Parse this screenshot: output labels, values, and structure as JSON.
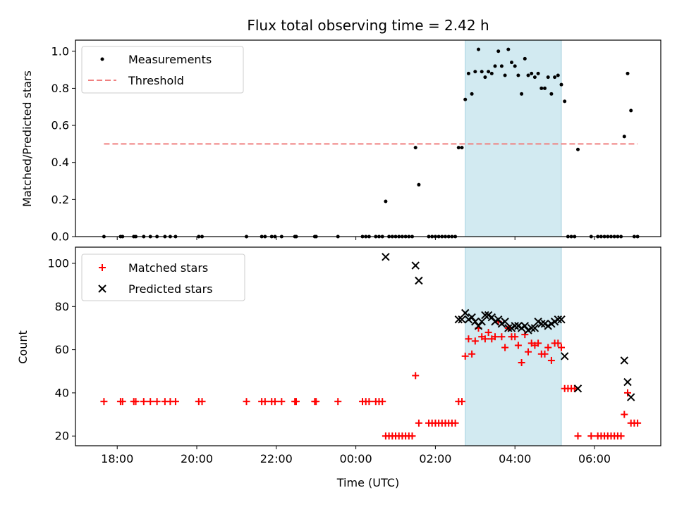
{
  "chart_data": [
    {
      "type": "scatter",
      "title": "Flux total observing time = 2.42 h",
      "ylabel": "Matched/Predicted stars",
      "xlabel": "",
      "ylim": [
        0,
        1.06
      ],
      "yticks": [
        "0.0",
        "0.2",
        "0.4",
        "0.6",
        "0.8",
        "1.0"
      ],
      "highlight_span": [
        "02:45",
        "05:10"
      ],
      "legend": {
        "placement": "top-left",
        "entries": [
          "Measurements",
          "Threshold"
        ]
      },
      "threshold": {
        "name": "Threshold",
        "y": 0.5,
        "x_range": [
          "17:40",
          "07:05"
        ],
        "color": "#f08080"
      },
      "series": [
        {
          "name": "Measurements",
          "color": "#000000",
          "points": [
            [
              "17:40",
              0
            ],
            [
              "18:05",
              0
            ],
            [
              "18:08",
              0
            ],
            [
              "18:25",
              0
            ],
            [
              "18:28",
              0
            ],
            [
              "18:40",
              0
            ],
            [
              "18:50",
              0
            ],
            [
              "19:00",
              0
            ],
            [
              "19:12",
              0
            ],
            [
              "19:20",
              0
            ],
            [
              "19:28",
              0
            ],
            [
              "20:03",
              0
            ],
            [
              "20:08",
              0
            ],
            [
              "21:15",
              0
            ],
            [
              "21:38",
              0
            ],
            [
              "21:43",
              0
            ],
            [
              "21:53",
              0
            ],
            [
              "21:58",
              0
            ],
            [
              "22:08",
              0
            ],
            [
              "22:28",
              0
            ],
            [
              "22:30",
              0
            ],
            [
              "22:58",
              0
            ],
            [
              "23:00",
              0
            ],
            [
              "23:33",
              0
            ],
            [
              "00:10",
              0
            ],
            [
              "00:15",
              0
            ],
            [
              "00:20",
              0
            ],
            [
              "00:30",
              0
            ],
            [
              "00:35",
              0
            ],
            [
              "00:40",
              0
            ],
            [
              "00:45",
              0.19
            ],
            [
              "00:50",
              0
            ],
            [
              "00:55",
              0
            ],
            [
              "01:00",
              0
            ],
            [
              "01:05",
              0
            ],
            [
              "01:10",
              0
            ],
            [
              "01:15",
              0
            ],
            [
              "01:20",
              0
            ],
            [
              "01:25",
              0
            ],
            [
              "01:30",
              0.48
            ],
            [
              "01:35",
              0.28
            ],
            [
              "01:50",
              0
            ],
            [
              "01:55",
              0
            ],
            [
              "02:00",
              0
            ],
            [
              "02:05",
              0
            ],
            [
              "02:10",
              0
            ],
            [
              "02:15",
              0
            ],
            [
              "02:20",
              0
            ],
            [
              "02:25",
              0
            ],
            [
              "02:30",
              0
            ],
            [
              "02:35",
              0.48
            ],
            [
              "02:40",
              0.48
            ],
            [
              "02:45",
              0.74
            ],
            [
              "02:50",
              0.88
            ],
            [
              "02:55",
              0.77
            ],
            [
              "03:00",
              0.89
            ],
            [
              "03:05",
              1.01
            ],
            [
              "03:10",
              0.89
            ],
            [
              "03:15",
              0.86
            ],
            [
              "03:20",
              0.89
            ],
            [
              "03:25",
              0.88
            ],
            [
              "03:30",
              0.92
            ],
            [
              "03:35",
              1.0
            ],
            [
              "03:40",
              0.92
            ],
            [
              "03:45",
              0.87
            ],
            [
              "03:50",
              1.01
            ],
            [
              "03:55",
              0.94
            ],
            [
              "04:00",
              0.92
            ],
            [
              "04:05",
              0.87
            ],
            [
              "04:10",
              0.77
            ],
            [
              "04:15",
              0.96
            ],
            [
              "04:20",
              0.87
            ],
            [
              "04:25",
              0.88
            ],
            [
              "04:30",
              0.86
            ],
            [
              "04:35",
              0.88
            ],
            [
              "04:40",
              0.8
            ],
            [
              "04:45",
              0.8
            ],
            [
              "04:50",
              0.86
            ],
            [
              "04:55",
              0.77
            ],
            [
              "05:00",
              0.86
            ],
            [
              "05:05",
              0.87
            ],
            [
              "05:10",
              0.82
            ],
            [
              "05:15",
              0.73
            ],
            [
              "05:20",
              0
            ],
            [
              "05:25",
              0
            ],
            [
              "05:30",
              0
            ],
            [
              "05:35",
              0.47
            ],
            [
              "05:55",
              0
            ],
            [
              "06:05",
              0
            ],
            [
              "06:10",
              0
            ],
            [
              "06:15",
              0
            ],
            [
              "06:20",
              0
            ],
            [
              "06:25",
              0
            ],
            [
              "06:30",
              0
            ],
            [
              "06:35",
              0
            ],
            [
              "06:40",
              0
            ],
            [
              "06:45",
              0.54
            ],
            [
              "06:50",
              0.88
            ],
            [
              "06:55",
              0.68
            ],
            [
              "07:00",
              0
            ],
            [
              "07:05",
              0
            ]
          ]
        }
      ]
    },
    {
      "type": "scatter",
      "title": "",
      "ylabel": "Count",
      "xlabel": "Time (UTC)",
      "ylim": [
        15.5,
        107.5
      ],
      "yticks": [
        "20",
        "40",
        "60",
        "80",
        "100"
      ],
      "xticks": [
        "18:00",
        "20:00",
        "22:00",
        "00:00",
        "02:00",
        "04:00",
        "06:00"
      ],
      "xlim": [
        "16:57",
        "07:40"
      ],
      "highlight_span": [
        "02:45",
        "05:10"
      ],
      "legend": {
        "placement": "top-left",
        "entries": [
          "Matched stars",
          "Predicted stars"
        ]
      },
      "series": [
        {
          "name": "Matched stars",
          "marker": "plus",
          "color": "#ff0000",
          "points": [
            [
              "17:40",
              36
            ],
            [
              "18:05",
              36
            ],
            [
              "18:08",
              36
            ],
            [
              "18:25",
              36
            ],
            [
              "18:28",
              36
            ],
            [
              "18:40",
              36
            ],
            [
              "18:50",
              36
            ],
            [
              "19:00",
              36
            ],
            [
              "19:12",
              36
            ],
            [
              "19:20",
              36
            ],
            [
              "19:28",
              36
            ],
            [
              "20:03",
              36
            ],
            [
              "20:08",
              36
            ],
            [
              "21:15",
              36
            ],
            [
              "21:38",
              36
            ],
            [
              "21:43",
              36
            ],
            [
              "21:53",
              36
            ],
            [
              "21:58",
              36
            ],
            [
              "22:08",
              36
            ],
            [
              "22:28",
              36
            ],
            [
              "22:30",
              36
            ],
            [
              "22:58",
              36
            ],
            [
              "23:00",
              36
            ],
            [
              "23:33",
              36
            ],
            [
              "00:10",
              36
            ],
            [
              "00:15",
              36
            ],
            [
              "00:20",
              36
            ],
            [
              "00:30",
              36
            ],
            [
              "00:35",
              36
            ],
            [
              "00:40",
              36
            ],
            [
              "00:45",
              20
            ],
            [
              "00:50",
              20
            ],
            [
              "00:55",
              20
            ],
            [
              "01:00",
              20
            ],
            [
              "01:05",
              20
            ],
            [
              "01:10",
              20
            ],
            [
              "01:15",
              20
            ],
            [
              "01:20",
              20
            ],
            [
              "01:25",
              20
            ],
            [
              "01:30",
              48
            ],
            [
              "01:35",
              26
            ],
            [
              "01:50",
              26
            ],
            [
              "01:55",
              26
            ],
            [
              "02:00",
              26
            ],
            [
              "02:05",
              26
            ],
            [
              "02:10",
              26
            ],
            [
              "02:15",
              26
            ],
            [
              "02:20",
              26
            ],
            [
              "02:25",
              26
            ],
            [
              "02:30",
              26
            ],
            [
              "02:35",
              36
            ],
            [
              "02:40",
              36
            ],
            [
              "02:45",
              57
            ],
            [
              "02:50",
              65
            ],
            [
              "02:55",
              58
            ],
            [
              "03:00",
              64
            ],
            [
              "03:05",
              70
            ],
            [
              "03:10",
              66
            ],
            [
              "03:15",
              65
            ],
            [
              "03:20",
              68
            ],
            [
              "03:25",
              65
            ],
            [
              "03:30",
              66
            ],
            [
              "03:35",
              73
            ],
            [
              "03:40",
              66
            ],
            [
              "03:45",
              61
            ],
            [
              "03:50",
              70
            ],
            [
              "03:55",
              66
            ],
            [
              "04:00",
              66
            ],
            [
              "04:05",
              62
            ],
            [
              "04:10",
              54
            ],
            [
              "04:15",
              67
            ],
            [
              "04:20",
              59
            ],
            [
              "04:25",
              63
            ],
            [
              "04:30",
              62
            ],
            [
              "04:35",
              63
            ],
            [
              "04:40",
              58
            ],
            [
              "04:45",
              58
            ],
            [
              "04:50",
              61
            ],
            [
              "04:55",
              55
            ],
            [
              "05:00",
              63
            ],
            [
              "05:05",
              63
            ],
            [
              "05:10",
              61
            ],
            [
              "05:15",
              42
            ],
            [
              "05:20",
              42
            ],
            [
              "05:25",
              42
            ],
            [
              "05:30",
              42
            ],
            [
              "05:35",
              20
            ],
            [
              "05:55",
              20
            ],
            [
              "06:05",
              20
            ],
            [
              "06:10",
              20
            ],
            [
              "06:15",
              20
            ],
            [
              "06:20",
              20
            ],
            [
              "06:25",
              20
            ],
            [
              "06:30",
              20
            ],
            [
              "06:35",
              20
            ],
            [
              "06:40",
              20
            ],
            [
              "06:45",
              30
            ],
            [
              "06:50",
              40
            ],
            [
              "06:55",
              26
            ],
            [
              "07:00",
              26
            ],
            [
              "07:05",
              26
            ]
          ]
        },
        {
          "name": "Predicted stars",
          "marker": "cross",
          "color": "#000000",
          "points": [
            [
              "00:45",
              103
            ],
            [
              "01:30",
              99
            ],
            [
              "01:35",
              92
            ],
            [
              "02:35",
              74
            ],
            [
              "02:40",
              74
            ],
            [
              "02:45",
              77
            ],
            [
              "02:50",
              74
            ],
            [
              "02:55",
              75
            ],
            [
              "03:00",
              73
            ],
            [
              "03:05",
              71
            ],
            [
              "03:10",
              73
            ],
            [
              "03:15",
              76
            ],
            [
              "03:20",
              76
            ],
            [
              "03:25",
              75
            ],
            [
              "03:30",
              73
            ],
            [
              "03:35",
              74
            ],
            [
              "03:40",
              72
            ],
            [
              "03:45",
              73
            ],
            [
              "03:50",
              70
            ],
            [
              "03:55",
              70
            ],
            [
              "04:00",
              71
            ],
            [
              "04:05",
              71
            ],
            [
              "04:10",
              70
            ],
            [
              "04:15",
              71
            ],
            [
              "04:20",
              69
            ],
            [
              "04:25",
              70
            ],
            [
              "04:30",
              70
            ],
            [
              "04:35",
              73
            ],
            [
              "04:40",
              72
            ],
            [
              "04:45",
              72
            ],
            [
              "04:50",
              71
            ],
            [
              "04:55",
              72
            ],
            [
              "05:00",
              73
            ],
            [
              "05:05",
              74
            ],
            [
              "05:10",
              74
            ],
            [
              "05:15",
              57
            ],
            [
              "05:35",
              42
            ],
            [
              "06:45",
              55
            ],
            [
              "06:50",
              45
            ],
            [
              "06:55",
              38
            ]
          ]
        }
      ]
    }
  ]
}
